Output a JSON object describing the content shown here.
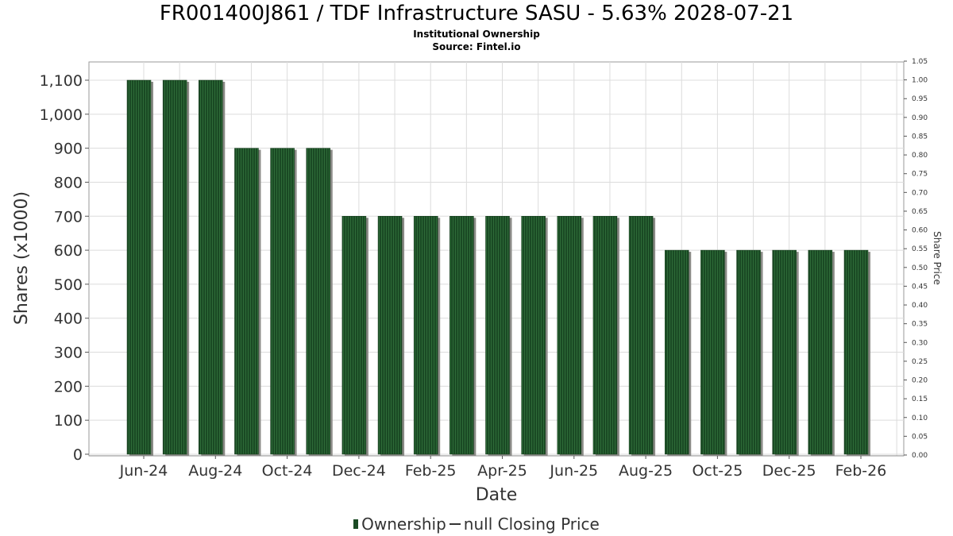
{
  "chart_data": {
    "type": "bar",
    "title": "FR001400J861 / TDF Infrastructure SASU - 5.63% 2028-07-21",
    "subtitle": "Institutional Ownership",
    "source": "Source: Fintel.io",
    "xlabel": "Date",
    "ylabel": "Shares (x1000)",
    "y2label": "Share Price",
    "ylim": [
      0,
      1100
    ],
    "y2lim": [
      0,
      1.05
    ],
    "yticks": [
      "0",
      "100",
      "200",
      "300",
      "400",
      "500",
      "600",
      "700",
      "800",
      "900",
      "1,000",
      "1,100"
    ],
    "y2ticks": [
      "0.00",
      "0.05",
      "0.10",
      "0.15",
      "0.20",
      "0.25",
      "0.30",
      "0.35",
      "0.40",
      "0.45",
      "0.50",
      "0.55",
      "0.60",
      "0.65",
      "0.70",
      "0.75",
      "0.80",
      "0.85",
      "0.90",
      "0.95",
      "1.00",
      "1.05"
    ],
    "xticks": [
      "Jun-24",
      "Aug-24",
      "Oct-24",
      "Dec-24",
      "Feb-25",
      "Apr-25",
      "Jun-25",
      "Aug-25",
      "Oct-25",
      "Dec-25",
      "Feb-26"
    ],
    "series": [
      {
        "name": "Ownership",
        "values": [
          1100,
          1100,
          1100,
          900,
          900,
          900,
          700,
          700,
          700,
          700,
          700,
          700,
          700,
          700,
          700,
          600,
          600,
          600,
          600,
          600,
          600
        ]
      }
    ],
    "legend": [
      "Ownership",
      "null Closing Price"
    ],
    "colors": {
      "bar": "#1a4a24",
      "bar_stripe": "#2e6b38",
      "shadow": "#8a8a86",
      "grid": "#dcdcdc"
    }
  }
}
